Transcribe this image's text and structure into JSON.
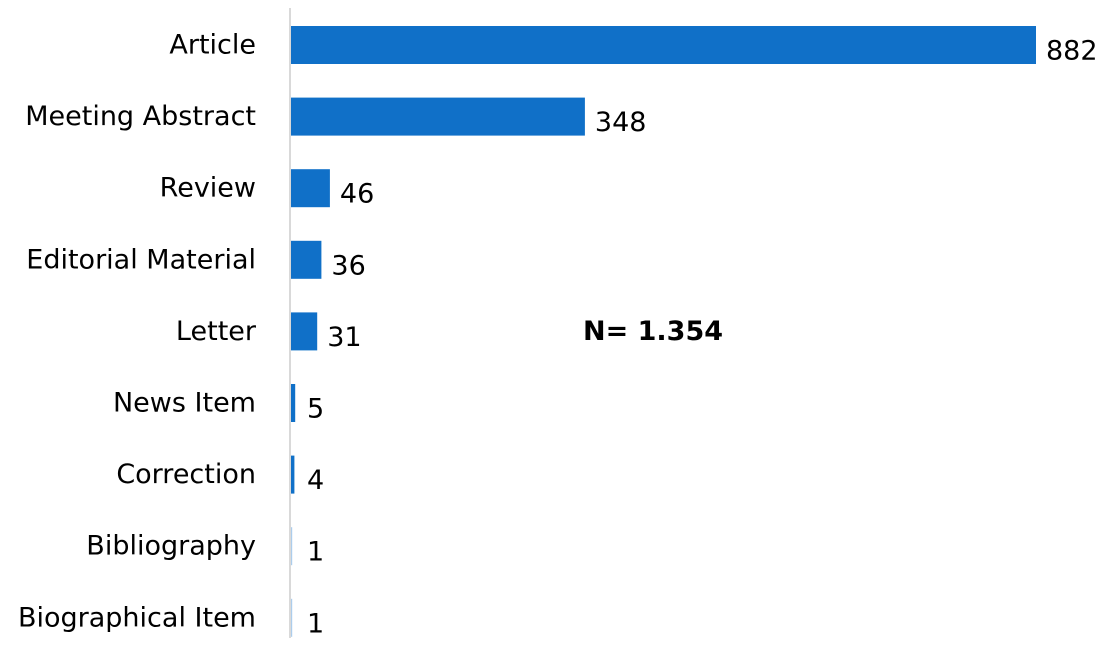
{
  "chart_data": {
    "type": "bar",
    "orientation": "horizontal",
    "title": "",
    "xlabel": "",
    "ylabel": "",
    "categories": [
      "Article",
      "Meeting Abstract",
      "Review",
      "Editorial Material",
      "Letter",
      "News Item",
      "Correction",
      "Bibliography",
      "Biographical Item"
    ],
    "values": [
      882,
      348,
      46,
      36,
      31,
      5,
      4,
      1,
      1
    ],
    "value_labels": [
      "882",
      "348",
      "46",
      "36",
      "31",
      "5",
      "4",
      "1",
      "1"
    ],
    "xlim": [
      0,
      882
    ],
    "annotation": "N= 1.354",
    "bar_color": "#1070c8",
    "axis_color": "#d9d9d9",
    "grid": false,
    "legend": "none"
  }
}
